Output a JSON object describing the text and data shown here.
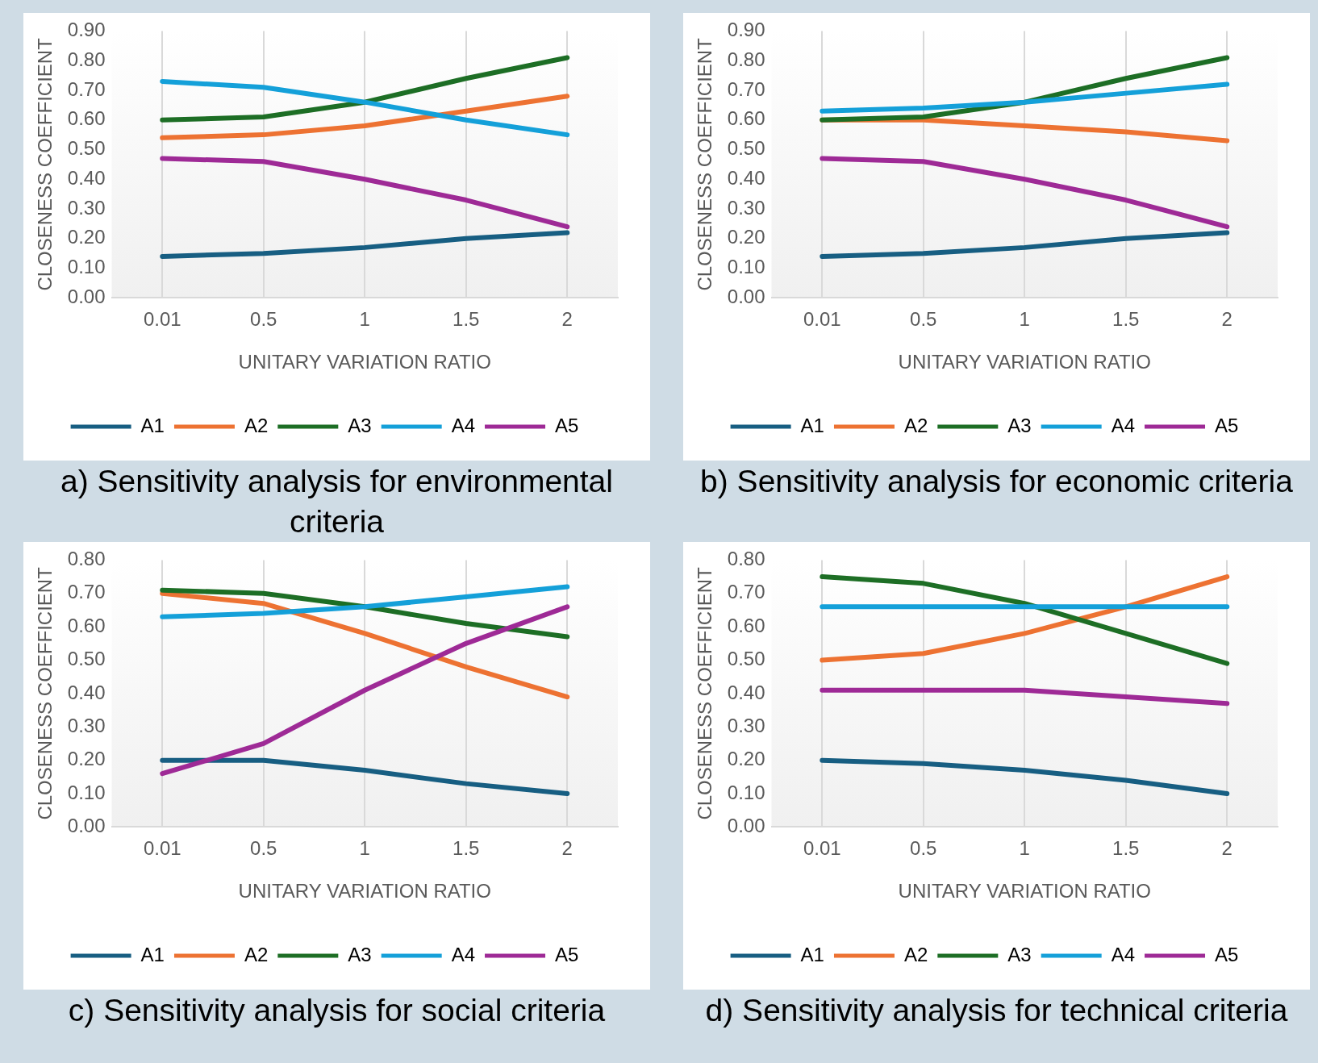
{
  "chart_data": [
    {
      "type": "line",
      "title": "a) Sensitivity analysis for environmental criteria",
      "xlabel": "UNITARY VARIATION RATIO",
      "ylabel": "CLOSENESS COEFFICIENT",
      "categories": [
        "0.01",
        "0.5",
        "1",
        "1.5",
        "2"
      ],
      "ylim": [
        0,
        0.9
      ],
      "yticks": [
        {
          "value": 0,
          "label": "0.00"
        },
        {
          "value": 0.1,
          "label": "0.10"
        },
        {
          "value": 0.2,
          "label": "0.20"
        },
        {
          "value": 0.3,
          "label": "0.30"
        },
        {
          "value": 0.4,
          "label": "0.40"
        },
        {
          "value": 0.5,
          "label": "0.50"
        },
        {
          "value": 0.6,
          "label": "0.60"
        },
        {
          "value": 0.7,
          "label": "0.70"
        },
        {
          "value": 0.8,
          "label": "0.80"
        },
        {
          "value": 0.9,
          "label": "0.90"
        }
      ],
      "grid": "x",
      "legend": "bottom",
      "marker": "none",
      "series": [
        {
          "name": "A1",
          "color": "#175e82",
          "values": [
            0.14,
            0.15,
            0.17,
            0.2,
            0.22
          ]
        },
        {
          "name": "A2",
          "color": "#ed7232",
          "values": [
            0.54,
            0.55,
            0.58,
            0.63,
            0.68
          ]
        },
        {
          "name": "A3",
          "color": "#1d6e25",
          "values": [
            0.6,
            0.61,
            0.66,
            0.74,
            0.81
          ]
        },
        {
          "name": "A4",
          "color": "#14a0d9",
          "values": [
            0.73,
            0.71,
            0.66,
            0.6,
            0.55
          ]
        },
        {
          "name": "A5",
          "color": "#9e2a96",
          "values": [
            0.47,
            0.46,
            0.4,
            0.33,
            0.24
          ]
        }
      ]
    },
    {
      "type": "line",
      "title": "b) Sensitivity analysis for economic criteria",
      "xlabel": "UNITARY VARIATION RATIO",
      "ylabel": "CLOSENESS COEFFICIENT",
      "categories": [
        "0.01",
        "0.5",
        "1",
        "1.5",
        "2"
      ],
      "ylim": [
        0,
        0.9
      ],
      "yticks": [
        {
          "value": 0,
          "label": "0.00"
        },
        {
          "value": 0.1,
          "label": "0.10"
        },
        {
          "value": 0.2,
          "label": "0.20"
        },
        {
          "value": 0.3,
          "label": "0.30"
        },
        {
          "value": 0.4,
          "label": "0.40"
        },
        {
          "value": 0.5,
          "label": "0.50"
        },
        {
          "value": 0.6,
          "label": "0.60"
        },
        {
          "value": 0.7,
          "label": "0.70"
        },
        {
          "value": 0.8,
          "label": "0.80"
        },
        {
          "value": 0.9,
          "label": "0.90"
        }
      ],
      "grid": "x",
      "legend": "bottom",
      "marker": "none",
      "series": [
        {
          "name": "A1",
          "color": "#175e82",
          "values": [
            0.14,
            0.15,
            0.17,
            0.2,
            0.22
          ]
        },
        {
          "name": "A2",
          "color": "#ed7232",
          "values": [
            0.6,
            0.6,
            0.58,
            0.56,
            0.53
          ]
        },
        {
          "name": "A3",
          "color": "#1d6e25",
          "values": [
            0.6,
            0.61,
            0.66,
            0.74,
            0.81
          ]
        },
        {
          "name": "A4",
          "color": "#14a0d9",
          "values": [
            0.63,
            0.64,
            0.66,
            0.69,
            0.72
          ]
        },
        {
          "name": "A5",
          "color": "#9e2a96",
          "values": [
            0.47,
            0.46,
            0.4,
            0.33,
            0.24
          ]
        }
      ]
    },
    {
      "type": "line",
      "title": "c) Sensitivity analysis for social criteria",
      "xlabel": "UNITARY VARIATION RATIO",
      "ylabel": "CLOSENESS COEFFICIENT",
      "categories": [
        "0.01",
        "0.5",
        "1",
        "1.5",
        "2"
      ],
      "ylim": [
        0,
        0.8
      ],
      "yticks": [
        {
          "value": 0,
          "label": "0.00"
        },
        {
          "value": 0.1,
          "label": "0.10"
        },
        {
          "value": 0.2,
          "label": "0.20"
        },
        {
          "value": 0.3,
          "label": "0.30"
        },
        {
          "value": 0.4,
          "label": "0.40"
        },
        {
          "value": 0.5,
          "label": "0.50"
        },
        {
          "value": 0.6,
          "label": "0.60"
        },
        {
          "value": 0.7,
          "label": "0.70"
        },
        {
          "value": 0.8,
          "label": "0.80"
        }
      ],
      "grid": "x",
      "legend": "bottom",
      "marker": "none",
      "series": [
        {
          "name": "A1",
          "color": "#175e82",
          "values": [
            0.2,
            0.2,
            0.17,
            0.13,
            0.1
          ]
        },
        {
          "name": "A2",
          "color": "#ed7232",
          "values": [
            0.7,
            0.67,
            0.58,
            0.48,
            0.39
          ]
        },
        {
          "name": "A3",
          "color": "#1d6e25",
          "values": [
            0.71,
            0.7,
            0.66,
            0.61,
            0.57
          ]
        },
        {
          "name": "A4",
          "color": "#14a0d9",
          "values": [
            0.63,
            0.64,
            0.66,
            0.69,
            0.72
          ]
        },
        {
          "name": "A5",
          "color": "#9e2a96",
          "values": [
            0.16,
            0.25,
            0.41,
            0.55,
            0.66
          ]
        }
      ]
    },
    {
      "type": "line",
      "title": "d) Sensitivity analysis for technical criteria",
      "xlabel": "UNITARY VARIATION RATIO",
      "ylabel": "CLOSENESS COEFFICIENT",
      "categories": [
        "0.01",
        "0.5",
        "1",
        "1.5",
        "2"
      ],
      "ylim": [
        0,
        0.8
      ],
      "yticks": [
        {
          "value": 0,
          "label": "0.00"
        },
        {
          "value": 0.1,
          "label": "0.10"
        },
        {
          "value": 0.2,
          "label": "0.20"
        },
        {
          "value": 0.3,
          "label": "0.30"
        },
        {
          "value": 0.4,
          "label": "0.40"
        },
        {
          "value": 0.5,
          "label": "0.50"
        },
        {
          "value": 0.6,
          "label": "0.60"
        },
        {
          "value": 0.7,
          "label": "0.70"
        },
        {
          "value": 0.8,
          "label": "0.80"
        }
      ],
      "grid": "x",
      "legend": "bottom",
      "marker": "none",
      "series": [
        {
          "name": "A1",
          "color": "#175e82",
          "values": [
            0.2,
            0.19,
            0.17,
            0.14,
            0.1
          ]
        },
        {
          "name": "A2",
          "color": "#ed7232",
          "values": [
            0.5,
            0.52,
            0.58,
            0.66,
            0.75
          ]
        },
        {
          "name": "A3",
          "color": "#1d6e25",
          "values": [
            0.75,
            0.73,
            0.67,
            0.58,
            0.49
          ]
        },
        {
          "name": "A4",
          "color": "#14a0d9",
          "values": [
            0.66,
            0.66,
            0.66,
            0.66,
            0.66
          ]
        },
        {
          "name": "A5",
          "color": "#9e2a96",
          "values": [
            0.41,
            0.41,
            0.41,
            0.39,
            0.37
          ]
        }
      ]
    }
  ]
}
